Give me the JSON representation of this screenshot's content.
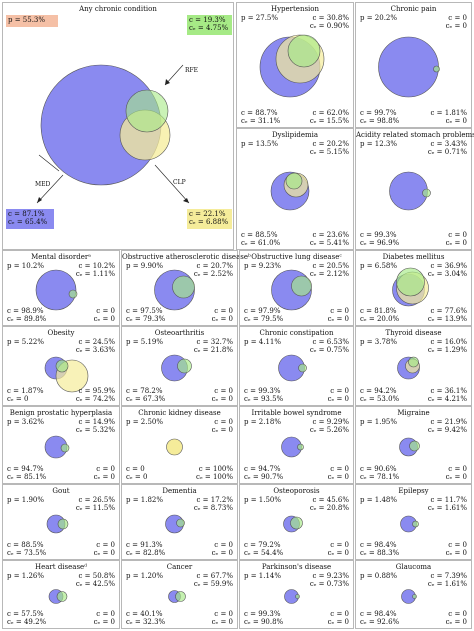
{
  "colors": {
    "blue": "#8a8af0",
    "green": "#a6ea86",
    "yellow": "#f5ec9a",
    "pink_box": "#f5c0a6",
    "yellow_box": "#f5ec9a",
    "blue_box": "#8a8af0"
  },
  "main": {
    "title": "Any chronic condition",
    "p": "p = 55.3%",
    "rfe_label": "RFE",
    "rfe_c": "c = 19.3%",
    "rfe_ce": "cₑ = 4.75%",
    "med_label": "MED",
    "med_c": "c = 87.1%",
    "med_ce": "cₑ = 65.4%",
    "clp_label": "CLP",
    "clp_c": "c = 22.1%",
    "clp_ce": "cₑ = 6.88%"
  },
  "panels": [
    {
      "title": "Hypertension",
      "p": "p = 27.5%",
      "tr1": "c = 30.8%",
      "tr2": "cₑ = 0.90%",
      "bl1": "c = 88.7%",
      "bl2": "cₑ = 31.1%",
      "br1": "c = 62.0%",
      "br2": "cₑ = 15.5%"
    },
    {
      "title": "Chronic pain",
      "p": "p = 20.2%",
      "tr1": "c = 0",
      "tr2": "cₑ = 0",
      "bl1": "c = 99.7%",
      "bl2": "cₑ = 98.8%",
      "br1": "c = 1.81%",
      "br2": "cₑ = 0"
    },
    {
      "title": "Dyslipidemia",
      "p": "p = 13.5%",
      "tr1": "c = 20.2%",
      "tr2": "cₑ = 5.15%",
      "bl1": "c = 88.5%",
      "bl2": "cₑ = 61.0%",
      "br1": "c = 23.6%",
      "br2": "cₑ = 5.41%"
    },
    {
      "title": "Acidity related stomach problems",
      "p": "p = 12.3%",
      "tr1": "c = 3.43%",
      "tr2": "cₑ = 0.71%",
      "bl1": "c = 99.3%",
      "bl2": "cₑ = 96.9%",
      "br1": "c = 0",
      "br2": "cₑ = 0"
    },
    {
      "title": "Mental disorderᵃ",
      "p": "p = 10.2%",
      "tr1": "c = 10.2%",
      "tr2": "cₑ = 1.11%",
      "bl1": "c = 98.9%",
      "bl2": "cₑ = 89.8%",
      "br1": "c = 0",
      "br2": "cₑ = 0"
    },
    {
      "title": "Obstructive atherosclerotic diseaseᵇ",
      "p": "p = 9.90%",
      "tr1": "c = 20.7%",
      "tr2": "cₑ = 2.52%",
      "bl1": "c = 97.5%",
      "bl2": "cₑ = 79.3%",
      "br1": "c = 0",
      "br2": "cₑ = 0"
    },
    {
      "title": "Obstructive lung diseaseᶜ",
      "p": "p = 9.23%",
      "tr1": "c = 20.5%",
      "tr2": "cₑ = 2.12%",
      "bl1": "c = 97.9%",
      "bl2": "cₑ = 79.5%",
      "br1": "c = 0",
      "br2": "cₑ = 0"
    },
    {
      "title": "Diabetes mellitus",
      "p": "p = 6.58%",
      "tr1": "c = 36.9%",
      "tr2": "cₑ = 3.04%",
      "bl1": "c = 81.8%",
      "bl2": "cₑ = 20.0%",
      "br1": "c = 77.6%",
      "br2": "cₑ = 13.9%"
    },
    {
      "title": "Obesity",
      "p": "p = 5.22%",
      "tr1": "c = 24.5%",
      "tr2": "cₑ = 3.63%",
      "bl1": "c = 1.87%",
      "bl2": "cₑ = 0",
      "br1": "c = 95.9%",
      "br2": "cₑ = 74.2%"
    },
    {
      "title": "Osteoarthritis",
      "p": "p = 5.19%",
      "tr1": "c = 32.7%",
      "tr2": "cₑ = 21.8%",
      "bl1": "c = 78.2%",
      "bl2": "cₑ = 67.3%",
      "br1": "c = 0",
      "br2": "cₑ = 0"
    },
    {
      "title": "Chronic constipation",
      "p": "p = 4.11%",
      "tr1": "c = 6.53%",
      "tr2": "cₑ = 0.75%",
      "bl1": "c = 99.3%",
      "bl2": "cₑ = 93.5%",
      "br1": "c = 0",
      "br2": "cₑ = 0"
    },
    {
      "title": "Thyroid disease",
      "p": "p = 3.78%",
      "tr1": "c = 16.0%",
      "tr2": "cₑ = 1.29%",
      "bl1": "c = 94.2%",
      "bl2": "cₑ = 53.0%",
      "br1": "c = 36.1%",
      "br2": "cₑ = 4.21%"
    },
    {
      "title": "Benign prostatic hyperplasia",
      "p": "p = 3.62%",
      "tr1": "c = 14.9%",
      "tr2": "cₑ = 5.32%",
      "bl1": "c = 94.7%",
      "bl2": "cₑ = 85.1%",
      "br1": "c = 0",
      "br2": "cₑ = 0"
    },
    {
      "title": "Chronic kidney disease",
      "p": "p = 2.50%",
      "tr1": "c = 0",
      "tr2": "cₑ = 0",
      "bl1": "c = 0",
      "bl2": "cₑ = 0",
      "br1": "c = 100%",
      "br2": "cₑ = 100%"
    },
    {
      "title": "Irritable bowel syndrome",
      "p": "p = 2.18%",
      "tr1": "c = 9.29%",
      "tr2": "cₑ = 5.26%",
      "bl1": "c = 94.7%",
      "bl2": "cₑ = 90.7%",
      "br1": "c = 0",
      "br2": "cₑ = 0"
    },
    {
      "title": "Migraine",
      "p": "p = 1.95%",
      "tr1": "c = 21.9%",
      "tr2": "cₑ = 9.42%",
      "bl1": "c = 90.6%",
      "bl2": "cₑ = 78.1%",
      "br1": "c = 0",
      "br2": "cₑ = 0"
    },
    {
      "title": "Gout",
      "p": "p = 1.90%",
      "tr1": "c = 26.5%",
      "tr2": "cₑ = 11.5%",
      "bl1": "c = 88.5%",
      "bl2": "cₑ = 73.5%",
      "br1": "c = 0",
      "br2": "cₑ = 0"
    },
    {
      "title": "Dementia",
      "p": "p = 1.82%",
      "tr1": "c = 17.2%",
      "tr2": "cₑ = 8.73%",
      "bl1": "c = 91.3%",
      "bl2": "cₑ = 82.8%",
      "br1": "c = 0",
      "br2": "cₑ = 0"
    },
    {
      "title": "Osteoporosis",
      "p": "p = 1.50%",
      "tr1": "c = 45.6%",
      "tr2": "cₑ = 20.8%",
      "bl1": "c = 79.2%",
      "bl2": "cₑ = 54.4%",
      "br1": "c = 0",
      "br2": "cₑ = 0"
    },
    {
      "title": "Epilepsy",
      "p": "p = 1.48%",
      "tr1": "c = 11.7%",
      "tr2": "cₑ = 1.61%",
      "bl1": "c = 98.4%",
      "bl2": "cₑ = 88.3%",
      "br1": "c = 0",
      "br2": "cₑ = 0"
    },
    {
      "title": "Heart diseaseᵈ",
      "p": "p = 1.26%",
      "tr1": "c = 50.8%",
      "tr2": "cₑ = 42.5%",
      "bl1": "c = 57.5%",
      "bl2": "cₑ = 49.2%",
      "br1": "c = 0",
      "br2": "cₑ = 0"
    },
    {
      "title": "Cancer",
      "p": "p = 1.20%",
      "tr1": "c = 67.7%",
      "tr2": "cₑ = 59.9%",
      "bl1": "c = 40.1%",
      "bl2": "cₑ = 32.3%",
      "br1": "c = 0",
      "br2": "cₑ = 0"
    },
    {
      "title": "Parkinson's disease",
      "p": "p = 1.14%",
      "tr1": "c = 9.23%",
      "tr2": "cₑ = 0.73%",
      "bl1": "c = 99.3%",
      "bl2": "cₑ = 90.8%",
      "br1": "c = 0",
      "br2": "cₑ = 0"
    },
    {
      "title": "Glaucoma",
      "p": "p = 0.88%",
      "tr1": "c = 7.39%",
      "tr2": "cₑ = 1.61%",
      "bl1": "c = 98.4%",
      "bl2": "cₑ = 92.6%",
      "br1": "c = 0",
      "br2": "cₑ = 0"
    }
  ]
}
